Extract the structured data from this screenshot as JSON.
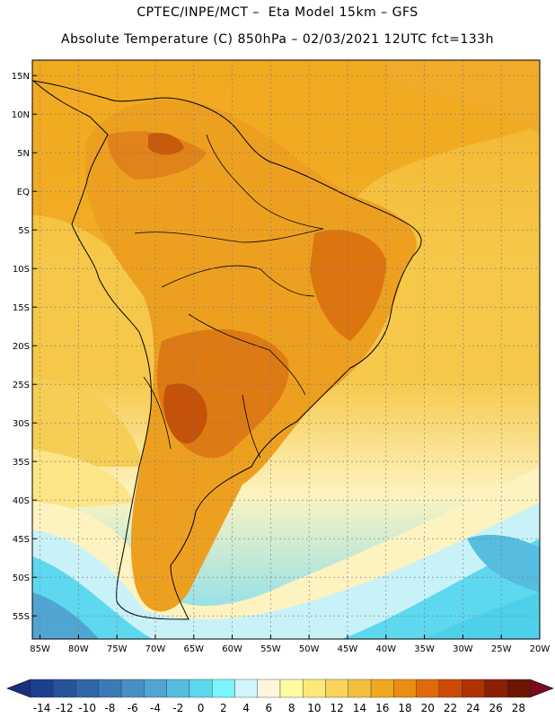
{
  "header": {
    "line1": "CPTEC/INPE/MCT –  Eta Model 15km – GFS",
    "line2": "Absolute Temperature (C) 850hPa – 02/03/2021 12UTC fct=133h"
  },
  "map": {
    "lat_labels": [
      "15N",
      "10N",
      "5N",
      "EQ",
      "5S",
      "10S",
      "15S",
      "20S",
      "25S",
      "30S",
      "35S",
      "40S",
      "45S",
      "50S",
      "55S"
    ],
    "lon_labels": [
      "85W",
      "80W",
      "75W",
      "70W",
      "65W",
      "60W",
      "55W",
      "50W",
      "45W",
      "40W",
      "35W",
      "30W",
      "25W",
      "20W"
    ]
  },
  "colorbar": {
    "labels": [
      "-14",
      "-12",
      "-10",
      "-8",
      "-6",
      "-4",
      "-2",
      "0",
      "2",
      "4",
      "6",
      "8",
      "10",
      "12",
      "14",
      "16",
      "18",
      "20",
      "22",
      "24",
      "26",
      "28"
    ],
    "colors": [
      "#1c3f8e",
      "#27539b",
      "#3166a8",
      "#3b7ab5",
      "#4690c4",
      "#50a5d2",
      "#56bde0",
      "#5ed8ee",
      "#7af5fd",
      "#d1f5fb",
      "#fdf6dc",
      "#fdfba0",
      "#fbe979",
      "#f8d45c",
      "#f4bf3c",
      "#f0a81e",
      "#ea8d12",
      "#e06a0a",
      "#cc4a06",
      "#b03204",
      "#8c2004",
      "#6e1602"
    ],
    "under_color": "#1a2f80",
    "over_color": "#7a0a20"
  }
}
